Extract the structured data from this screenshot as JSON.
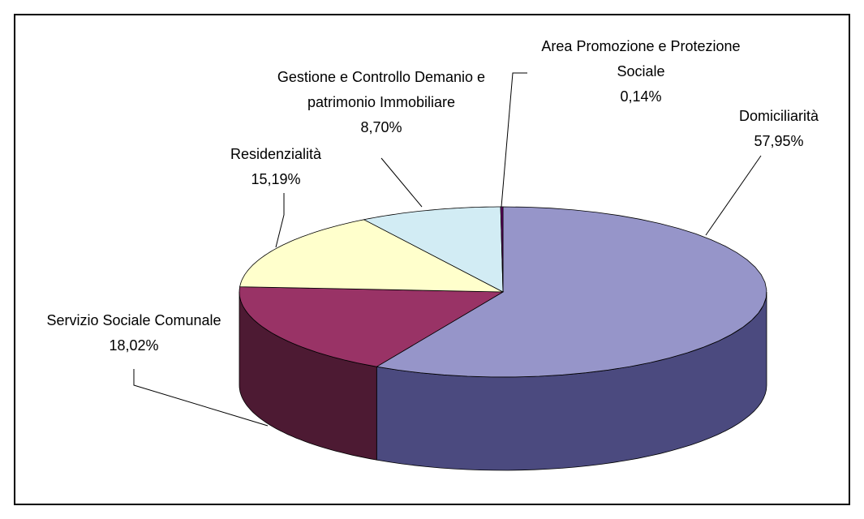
{
  "chart_data": {
    "type": "pie",
    "categories": [
      "Domiciliarità",
      "Servizio Sociale Comunale",
      "Residenzialità",
      "Gestione e Controllo Demanio e patrimonio Immobiliare",
      "Area Promozione e Protezione Sociale"
    ],
    "values": [
      57.95,
      18.02,
      15.19,
      8.7,
      0.14
    ],
    "value_labels": [
      "57,95%",
      "18,02%",
      "15,19%",
      "8,70%",
      "0,14%"
    ],
    "colors": [
      "#9695c9",
      "#993366",
      "#ffffcc",
      "#d2ecf4",
      "#660066"
    ],
    "side_colors": [
      "#4b4a7f",
      "#4d1a33",
      "#8c8c66",
      "#6a7a80",
      "#330033"
    ]
  }
}
